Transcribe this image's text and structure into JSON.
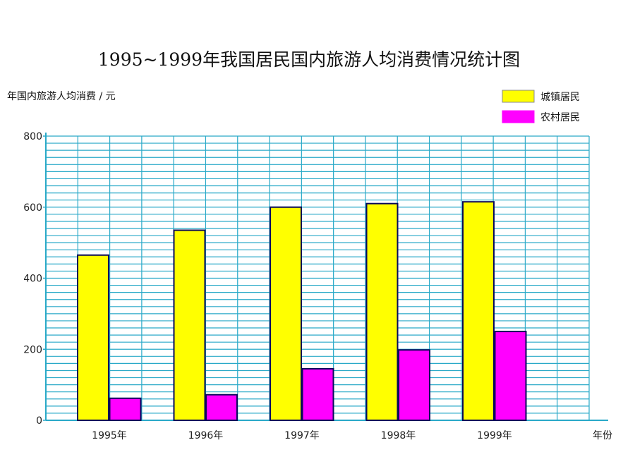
{
  "chart_data": {
    "type": "bar",
    "title": "1995~1999年我国居民国内旅游人均消费情况统计图",
    "ylabel": "年国内旅游人均消费 / 元",
    "xlabel": "年份",
    "categories": [
      "1995年",
      "1996年",
      "1997年",
      "1998年",
      "1999年"
    ],
    "series": [
      {
        "name": "城镇居民",
        "color": "#ffff00",
        "values": [
          465,
          535,
          600,
          610,
          615
        ]
      },
      {
        "name": "农村居民",
        "color": "#ff00ff",
        "values": [
          62,
          72,
          145,
          198,
          250
        ]
      }
    ],
    "yticks": [
      "0",
      "200",
      "400",
      "600",
      "800"
    ],
    "ylim": [
      0,
      800
    ],
    "grid": true,
    "grid_color": "#29a9c8",
    "bar_outline": "#0a0a5a",
    "legend_position": "top-right"
  }
}
